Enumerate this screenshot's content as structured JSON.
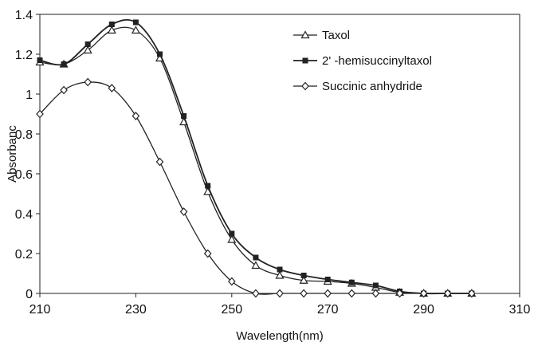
{
  "chart_data": {
    "type": "line",
    "title": "",
    "xlabel": "Wavelength(nm)",
    "ylabel": "Absorbanc",
    "xlim": [
      210,
      310
    ],
    "ylim": [
      0,
      1.4
    ],
    "x_ticks": [
      "210",
      "230",
      "250",
      "270",
      "290",
      "310"
    ],
    "y_ticks": [
      "0",
      "0.2",
      "0.4",
      "0.6",
      "0.8",
      "1",
      "1.2",
      "1.4"
    ],
    "grid": false,
    "legend_position": "top-right",
    "series": [
      {
        "name": "Taxol",
        "marker": "triangle",
        "x": [
          210,
          215,
          220,
          225,
          230,
          235,
          240,
          245,
          250,
          255,
          260,
          265,
          270,
          275,
          280,
          285,
          290,
          295,
          300
        ],
        "y": [
          1.16,
          1.15,
          1.22,
          1.32,
          1.32,
          1.18,
          0.86,
          0.51,
          0.27,
          0.14,
          0.09,
          0.065,
          0.06,
          0.05,
          0.03,
          0.005,
          0,
          0,
          0
        ]
      },
      {
        "name": "2' -hemisuccinyltaxol",
        "marker": "square",
        "x": [
          210,
          215,
          220,
          225,
          230,
          235,
          240,
          245,
          250,
          255,
          260,
          265,
          270,
          275,
          280,
          285,
          290,
          295,
          300
        ],
        "y": [
          1.17,
          1.15,
          1.25,
          1.35,
          1.36,
          1.2,
          0.89,
          0.54,
          0.3,
          0.18,
          0.12,
          0.09,
          0.07,
          0.055,
          0.04,
          0.01,
          0,
          0,
          0
        ]
      },
      {
        "name": "Succinic anhydride",
        "marker": "diamond",
        "x": [
          210,
          215,
          220,
          225,
          230,
          235,
          240,
          245,
          250,
          255,
          260,
          265,
          270,
          275,
          280,
          285,
          290,
          295,
          300
        ],
        "y": [
          0.9,
          1.02,
          1.06,
          1.03,
          0.89,
          0.66,
          0.41,
          0.2,
          0.06,
          0,
          0,
          0,
          0,
          0,
          0,
          0,
          0,
          0,
          0
        ]
      }
    ]
  }
}
